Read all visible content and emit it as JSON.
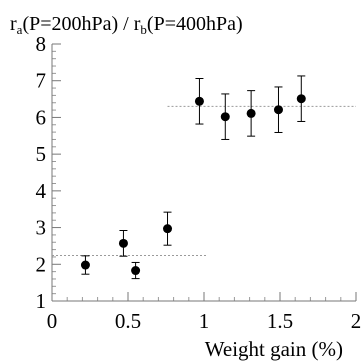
{
  "chart_data": {
    "type": "scatter",
    "title_parts": {
      "a_main": "r",
      "a_sub": "a",
      "a_cond": "(P=200hPa) / ",
      "b_main": "r",
      "b_sub": "b",
      "b_cond": "(P=400hPa)"
    },
    "xlabel": "Weight gain (%)",
    "ylabel": "",
    "xlim": [
      0,
      2
    ],
    "ylim": [
      1,
      8
    ],
    "x_ticks": [
      0,
      0.5,
      1,
      1.5,
      2
    ],
    "x_tick_labels": [
      "0",
      "0.5",
      "1",
      "1.5",
      "2"
    ],
    "y_ticks": [
      1,
      2,
      3,
      4,
      5,
      6,
      7,
      8
    ],
    "y_tick_labels": [
      "1",
      "2",
      "3",
      "4",
      "5",
      "6",
      "7",
      "8"
    ],
    "points": [
      {
        "x": 0.22,
        "y": 1.98,
        "err_low": 0.25,
        "err_high": 0.25
      },
      {
        "x": 0.47,
        "y": 2.57,
        "err_low": 0.35,
        "err_high": 0.35
      },
      {
        "x": 0.55,
        "y": 1.83,
        "err_low": 0.22,
        "err_high": 0.22
      },
      {
        "x": 0.76,
        "y": 2.97,
        "err_low": 0.45,
        "err_high": 0.45
      },
      {
        "x": 0.97,
        "y": 6.44,
        "err_low": 0.62,
        "err_high": 0.62
      },
      {
        "x": 1.14,
        "y": 6.02,
        "err_low": 0.62,
        "err_high": 0.62
      },
      {
        "x": 1.31,
        "y": 6.11,
        "err_low": 0.62,
        "err_high": 0.62
      },
      {
        "x": 1.49,
        "y": 6.21,
        "err_low": 0.62,
        "err_high": 0.62
      },
      {
        "x": 1.64,
        "y": 6.51,
        "err_low": 0.62,
        "err_high": 0.62
      }
    ],
    "reference_lines": [
      {
        "y": 2.24,
        "x_from": 0,
        "x_to": 1.02
      },
      {
        "y": 6.3,
        "x_from": 0.76,
        "x_to": 2
      }
    ],
    "grid": false,
    "point_color": "#000000",
    "reference_line_color": "#9a9a9a"
  }
}
